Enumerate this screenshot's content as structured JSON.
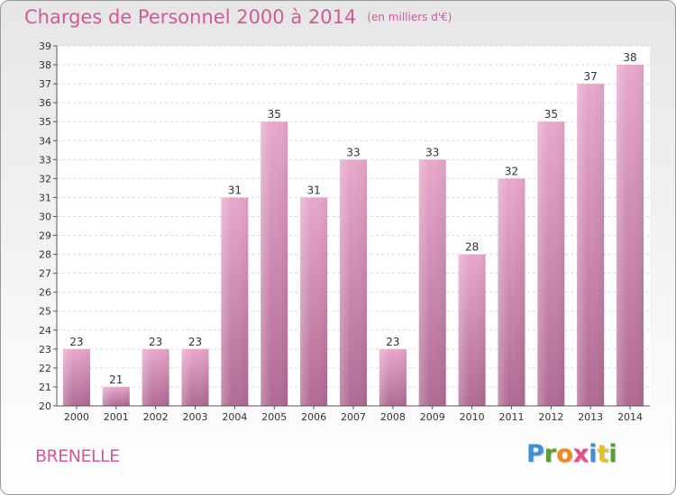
{
  "title": "Charges de Personnel 2000 à 2014",
  "subtitle": "(en milliers d'€)",
  "commune": "BRENELLE",
  "logo": {
    "letters": [
      "P",
      "r",
      "o",
      "x",
      "i",
      "t",
      "i"
    ],
    "colors": [
      "#3d8fd6",
      "#5a9e2f",
      "#f08a1c",
      "#e84a8a",
      "#3d8fd6",
      "#e8c21c",
      "#5a9e2f"
    ]
  },
  "colors": {
    "bar_top": "#e8a8cc",
    "bar_bottom": "#b06a94",
    "title": "#d05a98",
    "grid": "#d8d8d8"
  },
  "chart_data": {
    "type": "bar",
    "categories": [
      "2000",
      "2001",
      "2002",
      "2003",
      "2004",
      "2005",
      "2006",
      "2007",
      "2008",
      "2009",
      "2010",
      "2011",
      "2012",
      "2013",
      "2014"
    ],
    "values": [
      23,
      21,
      23,
      23,
      31,
      35,
      31,
      33,
      23,
      33,
      28,
      32,
      35,
      37,
      38
    ],
    "title": "Charges de Personnel 2000 à 2014",
    "subtitle": "(en milliers d'€)",
    "xlabel": "",
    "ylabel": "",
    "ylim": [
      20,
      39
    ],
    "yticks": [
      20,
      21,
      22,
      23,
      24,
      25,
      26,
      27,
      28,
      29,
      30,
      31,
      32,
      33,
      34,
      35,
      36,
      37,
      38,
      39
    ],
    "grid": true,
    "data_labels": true
  }
}
